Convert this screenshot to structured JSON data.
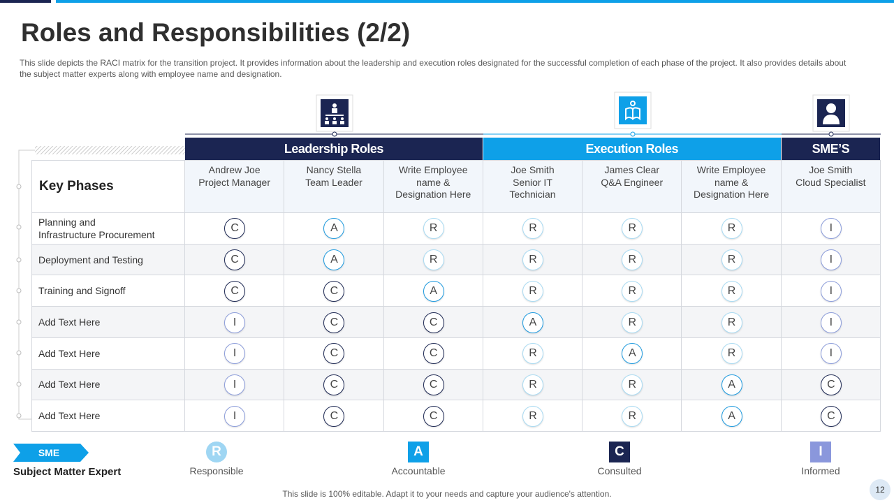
{
  "title": "Roles and Responsibilities (2/2)",
  "description": "This slide depicts the RACI matrix for the transition project. It provides  information about the leadership and execution roles designated for the successful completion of each phase of the project. It also provides  details about the subject matter experts along with employee name and designation.",
  "groups": [
    {
      "label": "Leadership Roles",
      "span": 3
    },
    {
      "label": "Execution Roles",
      "span": 3
    },
    {
      "label": "SME’S",
      "span": 1
    }
  ],
  "table": {
    "corner": "Key Phases",
    "columns": [
      "Andrew Joe\nProject Manager",
      "Nancy Stella\nTeam Leader",
      "Write Employee\nname &\nDesignation Here",
      "Joe Smith\nSenior IT\nTechnician",
      "James Clear\nQ&A Engineer",
      "Write Employee\nname &\nDesignation Here",
      "Joe Smith\nCloud Specialist"
    ],
    "rows": [
      {
        "phase": "Planning and\nInfrastructure Procurement",
        "cells": [
          "C",
          "A",
          "R",
          "R",
          "R",
          "R",
          "I"
        ]
      },
      {
        "phase": "Deployment and Testing",
        "cells": [
          "C",
          "A",
          "R",
          "R",
          "R",
          "R",
          "I"
        ]
      },
      {
        "phase": "Training and Signoff",
        "cells": [
          "C",
          "C",
          "A",
          "R",
          "R",
          "R",
          "I"
        ]
      },
      {
        "phase": "Add Text Here",
        "cells": [
          "I",
          "C",
          "C",
          "A",
          "R",
          "R",
          "I"
        ]
      },
      {
        "phase": "Add Text Here",
        "cells": [
          "I",
          "C",
          "C",
          "R",
          "A",
          "R",
          "I"
        ]
      },
      {
        "phase": "Add Text Here",
        "cells": [
          "I",
          "C",
          "C",
          "R",
          "R",
          "A",
          "C"
        ]
      },
      {
        "phase": "Add Text Here",
        "cells": [
          "I",
          "C",
          "C",
          "R",
          "R",
          "A",
          "C"
        ]
      }
    ]
  },
  "sme": {
    "badge": "SME",
    "label": "Subject Matter Expert"
  },
  "legend": [
    {
      "letter": "R",
      "label": "Responsible"
    },
    {
      "letter": "A",
      "label": "Accountable"
    },
    {
      "letter": "C",
      "label": "Consulted"
    },
    {
      "letter": "I",
      "label": "Informed"
    }
  ],
  "footer": "This slide is 100% editable. Adapt it to your needs and capture your audience's attention.",
  "page_number": "12"
}
